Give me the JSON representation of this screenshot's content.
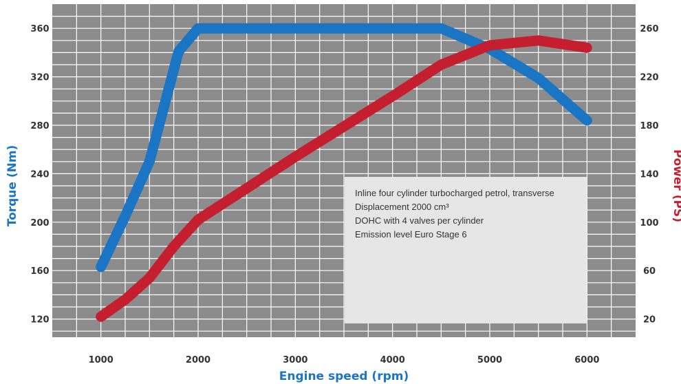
{
  "chart_data": {
    "type": "line",
    "xlabel": "Engine speed (rpm)",
    "ylabel_left": "Torque (Nm)",
    "ylabel_right": "Power (PS)",
    "x_range": [
      500,
      6500
    ],
    "x_ticks": [
      1000,
      2000,
      3000,
      4000,
      5000,
      6000
    ],
    "y_left_range": [
      105,
      380
    ],
    "y_left_ticks": [
      120,
      160,
      200,
      240,
      280,
      320,
      360
    ],
    "y_right_range": [
      5,
      280
    ],
    "y_right_ticks": [
      20,
      60,
      100,
      140,
      180,
      220,
      260
    ],
    "grid": true,
    "colors": {
      "plot_background": "#8c8c8c",
      "grid": "#ffffff",
      "torque": "#1a75c4",
      "power": "#c41e2f",
      "note_box": "#e6e6e6"
    },
    "series": [
      {
        "name": "Torque (Nm)",
        "axis": "left",
        "color": "#1a75c4",
        "x": [
          1000,
          1250,
          1500,
          1800,
          2000,
          3000,
          4000,
          4500,
          5000,
          5500,
          6000
        ],
        "y": [
          163,
          205,
          250,
          341,
          360,
          360,
          360,
          360,
          343,
          319,
          284
        ]
      },
      {
        "name": "Power (PS)",
        "axis": "right",
        "color": "#c41e2f",
        "x": [
          1000,
          1250,
          1500,
          1750,
          2000,
          3000,
          4000,
          4500,
          5000,
          5500,
          6000
        ],
        "y": [
          22,
          36,
          54,
          80,
          102,
          154,
          204,
          230,
          246,
          250,
          244
        ]
      }
    ],
    "annotation_lines": [
      "Inline four cylinder turbocharged petrol, transverse",
      "Displacement 2000 cm³",
      "DOHC with 4 valves per cylinder",
      "Emission level Euro Stage 6"
    ]
  }
}
